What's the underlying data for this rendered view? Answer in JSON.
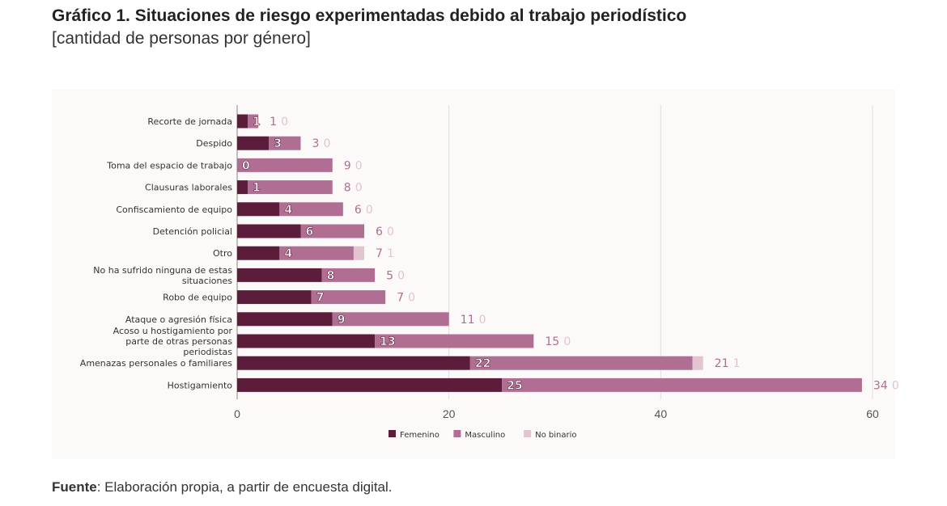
{
  "header": {
    "title": "Gráfico 1. Situaciones de riesgo experimentadas debido al trabajo periodístico",
    "subtitle": "[cantidad de personas por género]"
  },
  "footer": {
    "source_label": "Fuente",
    "source_text": ": Elaboración propia, a partir de encuesta digital."
  },
  "colors": {
    "femenino": "#5c1d3b",
    "masculino": "#b06e92",
    "no_binario": "#e3c4d1",
    "grid": "#dddddd",
    "axis": "#888888"
  },
  "chart_data": {
    "type": "bar",
    "orientation": "horizontal",
    "stacked": true,
    "categories": [
      "Recorte de jornada",
      "Despido",
      "Toma del espacio de trabajo",
      "Clausuras laborales",
      "Confiscamiento de equipo",
      "Detención policial",
      "Otro",
      "No ha sufrido ninguna de estas situaciones",
      "Robo de equipo",
      "Ataque o agresión física",
      "Acoso u hostigamiento por parte de otras personas periodistas",
      "Amenazas personales o familiares",
      "Hostigamiento"
    ],
    "series": [
      {
        "name": "Femenino",
        "values": [
          1,
          3,
          0,
          1,
          4,
          6,
          4,
          8,
          7,
          9,
          13,
          22,
          25
        ]
      },
      {
        "name": "Masculino",
        "values": [
          1,
          3,
          9,
          8,
          6,
          6,
          7,
          5,
          7,
          11,
          15,
          21,
          34
        ]
      },
      {
        "name": "No binario",
        "values": [
          0,
          0,
          0,
          0,
          0,
          0,
          1,
          0,
          0,
          0,
          0,
          1,
          0
        ]
      }
    ],
    "xlim": [
      0,
      60
    ],
    "xticks": [
      0,
      20,
      40,
      60
    ],
    "grid": true,
    "legend": "bottom"
  }
}
